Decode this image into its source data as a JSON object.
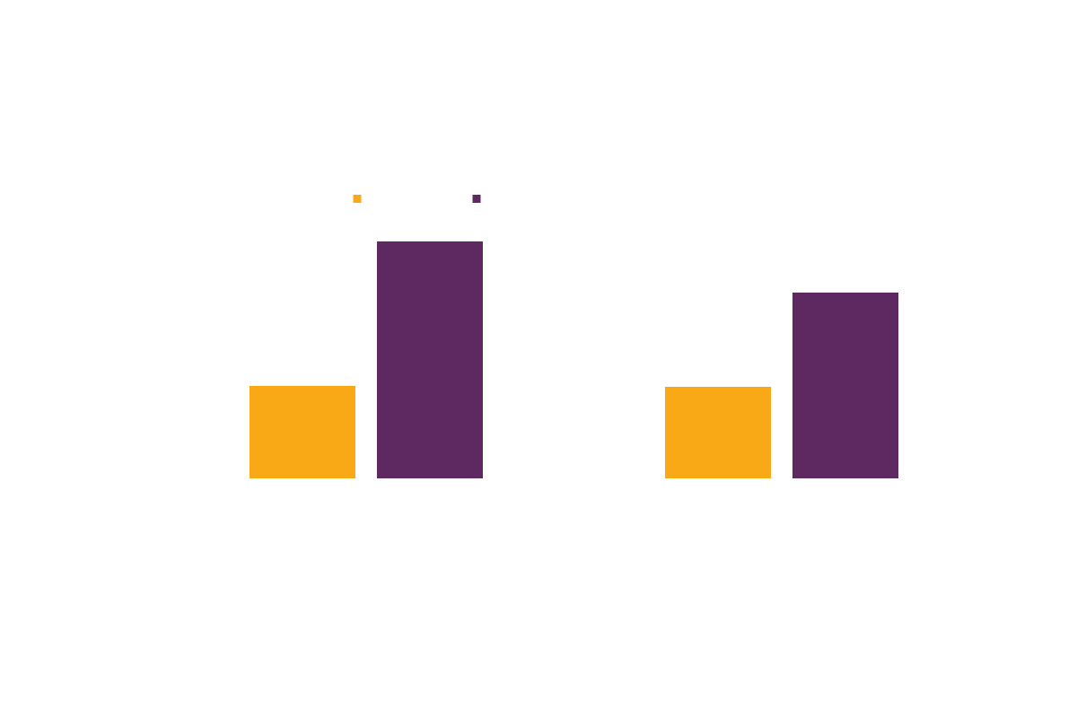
{
  "chart_data": {
    "type": "bar",
    "categories": [
      null,
      null
    ],
    "series": [
      {
        "color": "#FAA916",
        "values": [
          103,
          102
        ]
      },
      {
        "color": "#5E2861",
        "values": [
          264,
          207
        ]
      }
    ],
    "ylim": [
      0,
      300
    ]
  }
}
